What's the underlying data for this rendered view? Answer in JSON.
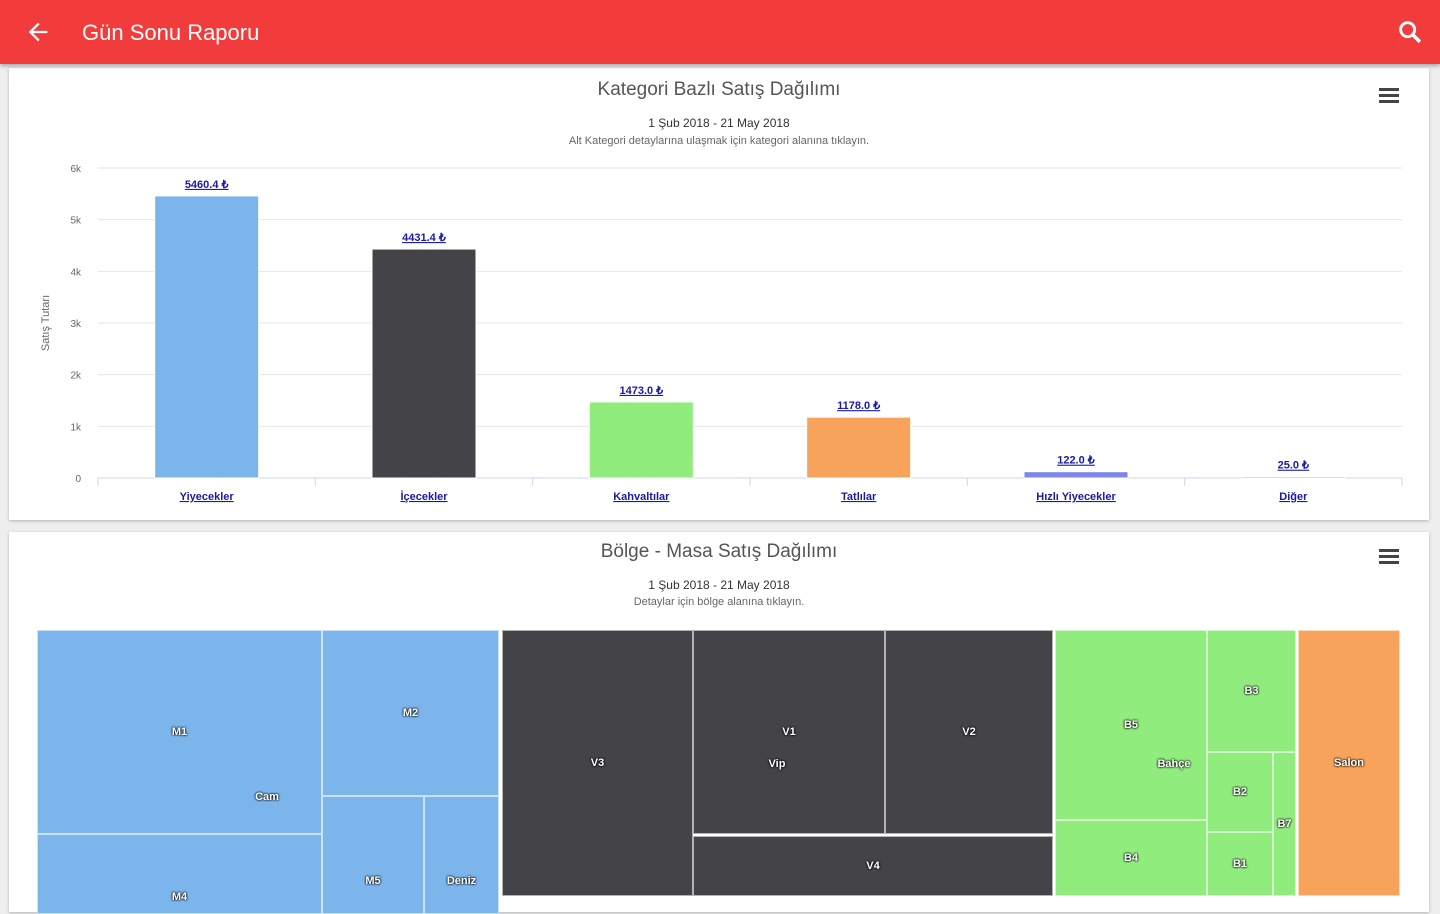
{
  "appbar": {
    "title": "Gün Sonu Raporu",
    "back_icon": "arrow-left-icon",
    "search_icon": "search-icon",
    "color": "#f23c3c"
  },
  "chart1": {
    "menu_icon": "hamburger-menu-icon"
  },
  "chart_data": [
    {
      "type": "bar",
      "title": "Kategori Bazlı Satış Dağılımı",
      "subtitle": "1 Şub 2018 - 21 May 2018",
      "hint": "Alt Kategori detaylarına ulaşmak için kategori alanına tıklayın.",
      "ylabel": "Satış Tutarı",
      "ylim": [
        0,
        6000
      ],
      "yticks": [
        "0",
        "1k",
        "2k",
        "3k",
        "4k",
        "5k",
        "6k"
      ],
      "categories": [
        "Yiyecekler",
        "İçecekler",
        "Kahvaltılar",
        "Tatlılar",
        "Hızlı Yiyecekler",
        "Diğer"
      ],
      "values": [
        5460.4,
        4431.4,
        1473.0,
        1178.0,
        122.0,
        25.0
      ],
      "data_labels": [
        "5460.4 ₺",
        "4431.4 ₺",
        "1473.0 ₺",
        "1178.0 ₺",
        "122.0 ₺",
        "25.0 ₺"
      ],
      "colors": [
        "#7cb5ec",
        "#434348",
        "#90ed7d",
        "#f7a35c",
        "#8085e9",
        "#f15c80"
      ],
      "grid": true
    },
    {
      "type": "treemap",
      "title": "Bölge - Masa Satış Dağılımı",
      "subtitle": "1 Şub 2018 - 21 May 2018",
      "hint": "Detaylar için bölge alanına tıklayın.",
      "groups": [
        {
          "name": "Cam",
          "color": "#7cb5ec",
          "tables": [
            "M1",
            "M2",
            "M4",
            "M5",
            "Deniz"
          ]
        },
        {
          "name": "Vip",
          "color": "#434348",
          "tables": [
            "V3",
            "V1",
            "V2",
            "V4"
          ]
        },
        {
          "name": "Bahçe",
          "color": "#90ed7d",
          "tables": [
            "B5",
            "B3",
            "B2",
            "B4",
            "B1",
            "B7"
          ]
        },
        {
          "name": "Salon",
          "color": "#f7a35c",
          "tables": []
        }
      ]
    }
  ],
  "chart2": {
    "menu_icon": "hamburger-menu-icon"
  }
}
